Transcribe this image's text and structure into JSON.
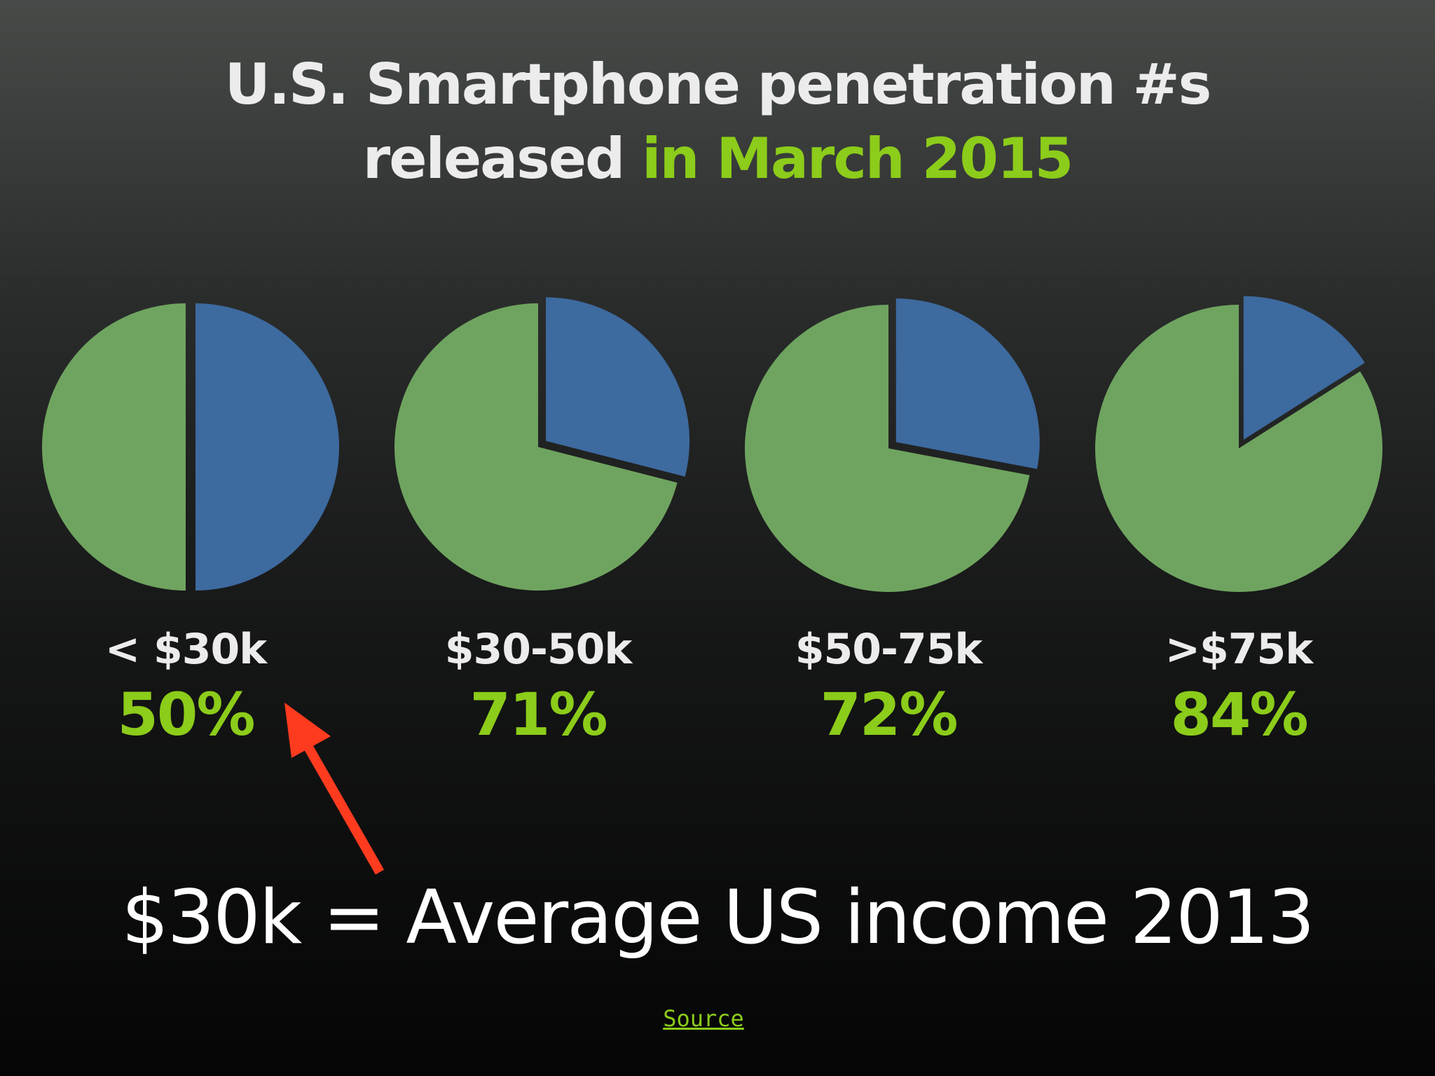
{
  "title": {
    "line1": "U.S. Smartphone penetration #s",
    "line2_plain": "released ",
    "line2_accent": "in March 2015"
  },
  "colors": {
    "green": "#6fa460",
    "blue": "#3d6a9f",
    "accent": "#8ccc1a",
    "arrow": "#ff3b1f"
  },
  "chart_data": {
    "type": "pie",
    "unit": "%",
    "charts": [
      {
        "category": "< $30k",
        "value": 50,
        "label": "50%"
      },
      {
        "category": "$30-50k",
        "value": 71,
        "label": "71%"
      },
      {
        "category": "$50-75k",
        "value": 72,
        "label": "72%"
      },
      {
        "category": ">$75k",
        "value": 84,
        "label": "84%"
      }
    ]
  },
  "annotation": "$30k = Average US income 2013",
  "source_link": "Source"
}
